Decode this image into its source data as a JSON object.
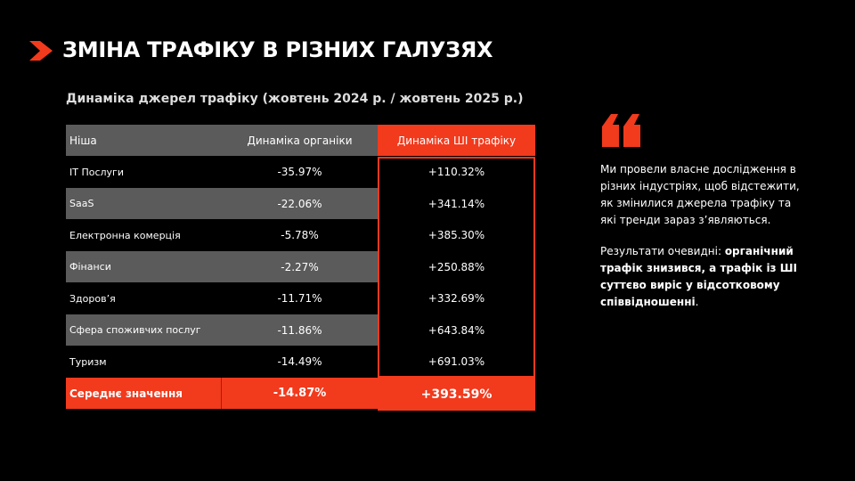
{
  "header": {
    "title": "ЗМІНА ТРАФІКУ В РІЗНИХ ГАЛУЗЯХ"
  },
  "table": {
    "caption": "Динаміка джерел трафіку (жовтень 2024 р. / жовтень 2025 р.)",
    "columns": [
      "Ніша",
      "Динаміка органіки",
      "Динаміка ШІ трафіку"
    ],
    "rows": [
      [
        "ІТ Послуги",
        "-35.97%",
        "+110.32%"
      ],
      [
        "SaaS",
        "-22.06%",
        "+341.14%"
      ],
      [
        "Електронна комерція",
        "-5.78%",
        "+385.30%"
      ],
      [
        "Фінанси",
        "-2.27%",
        "+250.88%"
      ],
      [
        "Здоров’я",
        "-11.71%",
        "+332.69%"
      ],
      [
        "Сфера споживчих послуг",
        "-11.86%",
        "+643.84%"
      ],
      [
        "Туризм",
        "-14.49%",
        "+691.03%"
      ]
    ],
    "average": [
      "Середнє значення",
      "-14.87%",
      "+393.59%"
    ]
  },
  "note": {
    "paragraph1": "Ми провели власне дослідження в різних індустріях, щоб відстежити, як змінилися джерела трафіку та які тренди зараз з’являються.",
    "paragraph2": [
      "Результати очевидні: ",
      "органічний трафік знизився, а трафік із ШІ суттєво виріс у відсотковому співвідношенні",
      "."
    ]
  }
}
